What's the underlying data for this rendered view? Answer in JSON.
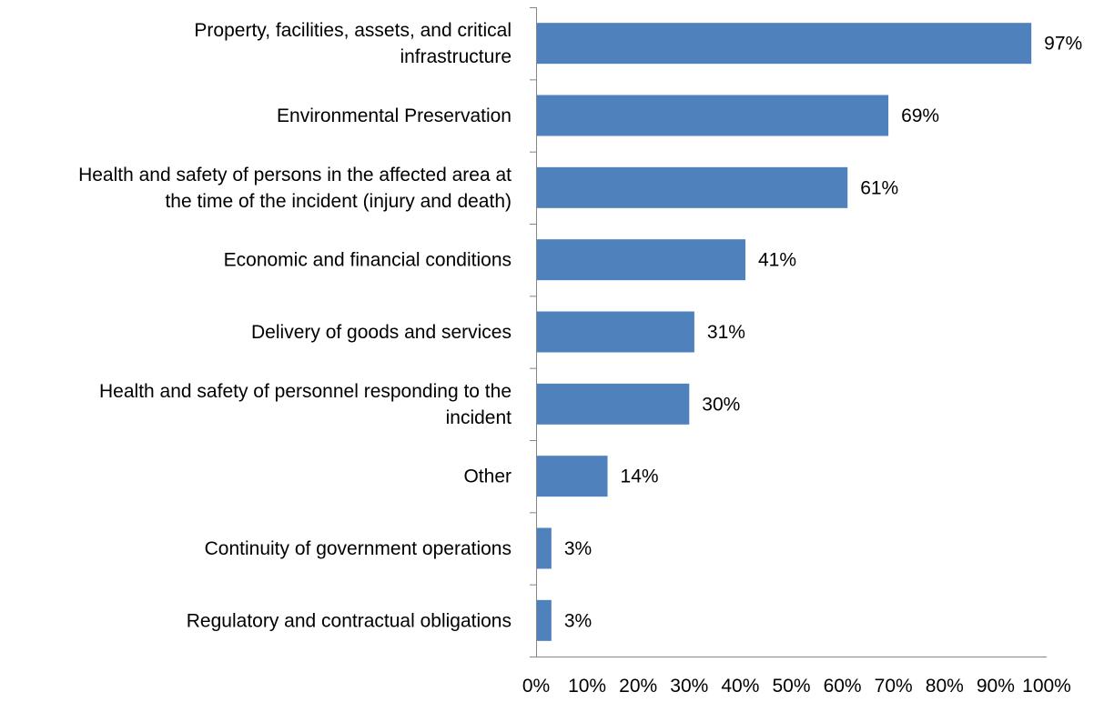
{
  "chart_data": {
    "type": "bar",
    "orientation": "horizontal",
    "categories": [
      "Property, facilities, assets, and critical infrastructure",
      "Environmental Preservation",
      "Health and safety of persons in the affected area at the time of the incident (injury and death)",
      "Economic and financial conditions",
      "Delivery of goods and services",
      "Health and safety of personnel responding to the incident",
      "Other",
      "Continuity of government operations",
      "Regulatory and contractual obligations"
    ],
    "category_lines": [
      [
        "Property, facilities, assets, and critical",
        "infrastructure"
      ],
      [
        "Environmental Preservation"
      ],
      [
        "Health and safety of persons in the affected area at",
        "the time of the incident (injury and death)"
      ],
      [
        "Economic and financial conditions"
      ],
      [
        "Delivery of goods and services"
      ],
      [
        "Health and safety of personnel responding to the",
        "incident"
      ],
      [
        "Other"
      ],
      [
        "Continuity of government operations"
      ],
      [
        "Regulatory and contractual obligations"
      ]
    ],
    "values": [
      97,
      69,
      61,
      41,
      31,
      30,
      14,
      3,
      3
    ],
    "data_labels": [
      "97%",
      "69%",
      "61%",
      "41%",
      "31%",
      "30%",
      "14%",
      "3%",
      "3%"
    ],
    "xlim": [
      0,
      100
    ],
    "x_ticks": [
      0,
      10,
      20,
      30,
      40,
      50,
      60,
      70,
      80,
      90,
      100
    ],
    "x_tick_labels": [
      "0%",
      "10%",
      "20%",
      "30%",
      "40%",
      "50%",
      "60%",
      "70%",
      "80%",
      "90%",
      "100%"
    ],
    "title": "",
    "xlabel": "",
    "ylabel": "",
    "grid": false,
    "legend": "none",
    "bar_color": "#4F81BD",
    "axis_color": "#868686"
  }
}
